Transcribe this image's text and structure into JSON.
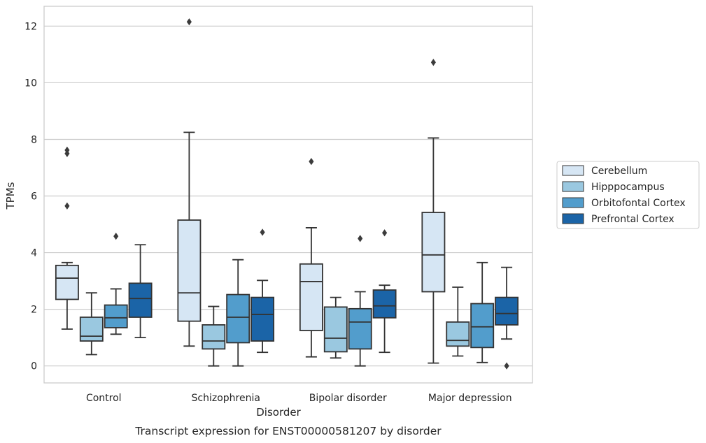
{
  "chart_data": {
    "type": "box",
    "xlabel": "Disorder",
    "ylabel": "TPMs",
    "caption": "Transcript expression for ENST00000581207 by disorder",
    "ylim": [
      -0.6,
      12.7
    ],
    "yticks": [
      0,
      2,
      4,
      6,
      8,
      10,
      12
    ],
    "grid": "horizontal",
    "legend_position": "right",
    "categories": [
      "Control",
      "Schizophrenia",
      "Bipolar disorder",
      "Major depression"
    ],
    "series": [
      {
        "name": "Cerebellum",
        "color": "#d6e6f4",
        "boxes": [
          {
            "whisker_low": 1.3,
            "q1": 2.35,
            "median": 3.1,
            "q3": 3.55,
            "whisker_high": 3.65,
            "outliers": [
              5.65,
              7.5,
              7.62
            ]
          },
          {
            "whisker_low": 0.7,
            "q1": 1.58,
            "median": 2.58,
            "q3": 5.15,
            "whisker_high": 8.25,
            "outliers": [
              12.15
            ]
          },
          {
            "whisker_low": 0.32,
            "q1": 1.25,
            "median": 2.98,
            "q3": 3.6,
            "whisker_high": 4.88,
            "outliers": [
              7.22
            ]
          },
          {
            "whisker_low": 0.1,
            "q1": 2.62,
            "median": 3.92,
            "q3": 5.42,
            "whisker_high": 8.05,
            "outliers": [
              10.72
            ]
          }
        ]
      },
      {
        "name": "Hipppocampus",
        "color": "#9ac8e0",
        "boxes": [
          {
            "whisker_low": 0.4,
            "q1": 0.88,
            "median": 1.05,
            "q3": 1.72,
            "whisker_high": 2.58,
            "outliers": []
          },
          {
            "whisker_low": 0.0,
            "q1": 0.6,
            "median": 0.88,
            "q3": 1.45,
            "whisker_high": 2.1,
            "outliers": []
          },
          {
            "whisker_low": 0.28,
            "q1": 0.5,
            "median": 0.98,
            "q3": 2.08,
            "whisker_high": 2.42,
            "outliers": []
          },
          {
            "whisker_low": 0.35,
            "q1": 0.7,
            "median": 0.9,
            "q3": 1.55,
            "whisker_high": 2.78,
            "outliers": []
          }
        ]
      },
      {
        "name": "Orbitofontal Cortex",
        "color": "#529dcc",
        "boxes": [
          {
            "whisker_low": 1.12,
            "q1": 1.35,
            "median": 1.7,
            "q3": 2.15,
            "whisker_high": 2.72,
            "outliers": [
              4.58
            ]
          },
          {
            "whisker_low": 0.0,
            "q1": 0.82,
            "median": 1.72,
            "q3": 2.52,
            "whisker_high": 3.75,
            "outliers": []
          },
          {
            "whisker_low": 0.0,
            "q1": 0.6,
            "median": 1.55,
            "q3": 2.02,
            "whisker_high": 2.62,
            "outliers": [
              4.5
            ]
          },
          {
            "whisker_low": 0.12,
            "q1": 0.65,
            "median": 1.38,
            "q3": 2.2,
            "whisker_high": 3.65,
            "outliers": []
          }
        ]
      },
      {
        "name": "Prefrontal Cortex",
        "color": "#1b64a7",
        "boxes": [
          {
            "whisker_low": 1.0,
            "q1": 1.72,
            "median": 2.38,
            "q3": 2.92,
            "whisker_high": 4.28,
            "outliers": []
          },
          {
            "whisker_low": 0.48,
            "q1": 0.88,
            "median": 1.82,
            "q3": 2.42,
            "whisker_high": 3.02,
            "outliers": [
              4.72
            ]
          },
          {
            "whisker_low": 0.48,
            "q1": 1.7,
            "median": 2.12,
            "q3": 2.68,
            "whisker_high": 2.85,
            "outliers": [
              4.7
            ]
          },
          {
            "whisker_low": 0.95,
            "q1": 1.45,
            "median": 1.85,
            "q3": 2.42,
            "whisker_high": 3.48,
            "outliers": [
              0.0
            ]
          }
        ]
      }
    ]
  }
}
